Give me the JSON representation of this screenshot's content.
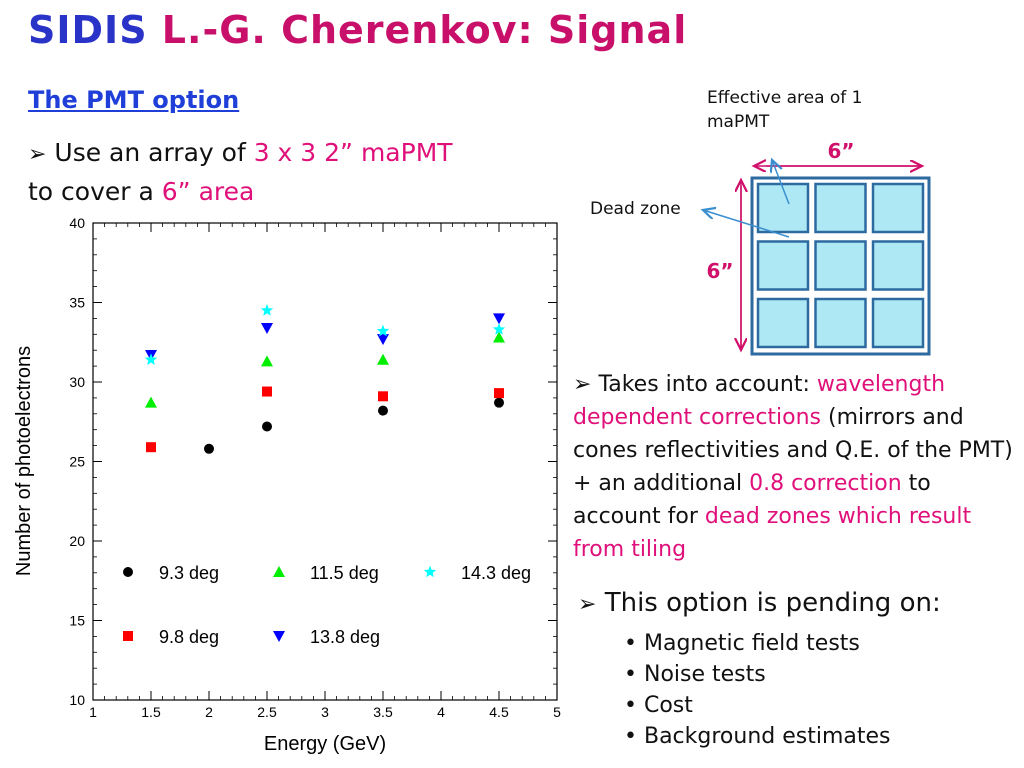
{
  "title": {
    "part1": "SIDIS",
    "part2": "L.-G. Cherenkov: Signal"
  },
  "subtitle": "The PMT option",
  "bullet1": {
    "text1": "Use an array of",
    "highlight1": "3 x 3 2” maPMT",
    "text2": "to cover a",
    "highlight2": "6” area"
  },
  "diagram": {
    "effective_label": "Effective area of 1",
    "effective_label2": "maPMT",
    "dead_zone_label": "Dead zone",
    "width_label": "6”",
    "height_label": "6”"
  },
  "right_bullet": {
    "prefix": "Takes into account:",
    "h1": "wavelength dependent corrections",
    "t2": "(mirrors and cones reflectivities and Q.E. of the PMT) + an additional",
    "h2": "0.8 correction",
    "t3": "to account for",
    "h3": "dead zones which result from tiling"
  },
  "pending": {
    "heading": "This option is pending on:",
    "items": [
      "Magnetic field tests",
      "Noise tests",
      "Cost",
      "Background estimates"
    ]
  },
  "colors": {
    "title_blue": "#2a33c8",
    "title_pink": "#c8106a",
    "highlight": "#e0107a",
    "pmt_fill": "#aee8f4",
    "pmt_border": "#2d6a9f"
  },
  "chart_data": {
    "type": "scatter",
    "xlabel": "Energy (GeV)",
    "ylabel": "Number of photoelectrons",
    "xlim": [
      1,
      5
    ],
    "ylim": [
      10,
      40
    ],
    "xticks": [
      "1",
      "1.5",
      "2",
      "2.5",
      "3",
      "3.5",
      "4",
      "4.5",
      "5"
    ],
    "yticks": [
      "10",
      "15",
      "20",
      "25",
      "30",
      "35",
      "40"
    ],
    "series": [
      {
        "name": "9.3 deg",
        "marker": "circle",
        "color": "#000000",
        "x": [
          2,
          2.5,
          3.5,
          4.5
        ],
        "y": [
          25.8,
          27.2,
          28.2,
          28.7
        ]
      },
      {
        "name": "9.8 deg",
        "marker": "square",
        "color": "#ff0000",
        "x": [
          1.5,
          2.5,
          3.5,
          4.5
        ],
        "y": [
          25.9,
          29.4,
          29.1,
          29.3
        ]
      },
      {
        "name": "11.5 deg",
        "marker": "triangle-up",
        "color": "#00ee00",
        "x": [
          1.5,
          2.5,
          3.5,
          4.5
        ],
        "y": [
          28.7,
          31.3,
          31.4,
          32.8
        ]
      },
      {
        "name": "13.8 deg",
        "marker": "triangle-down",
        "color": "#0000ff",
        "x": [
          1.5,
          2.5,
          3.5,
          4.5
        ],
        "y": [
          31.7,
          33.4,
          32.7,
          34.0
        ]
      },
      {
        "name": "14.3 deg",
        "marker": "star",
        "color": "#00ffff",
        "x": [
          1.5,
          2.5,
          3.5,
          4.5
        ],
        "y": [
          31.4,
          34.5,
          33.2,
          33.3
        ]
      }
    ],
    "legend": [
      {
        "series": 0,
        "row": 0,
        "col": 0
      },
      {
        "series": 2,
        "row": 0,
        "col": 1
      },
      {
        "series": 4,
        "row": 0,
        "col": 2
      },
      {
        "series": 1,
        "row": 1,
        "col": 0
      },
      {
        "series": 3,
        "row": 1,
        "col": 1
      }
    ]
  }
}
